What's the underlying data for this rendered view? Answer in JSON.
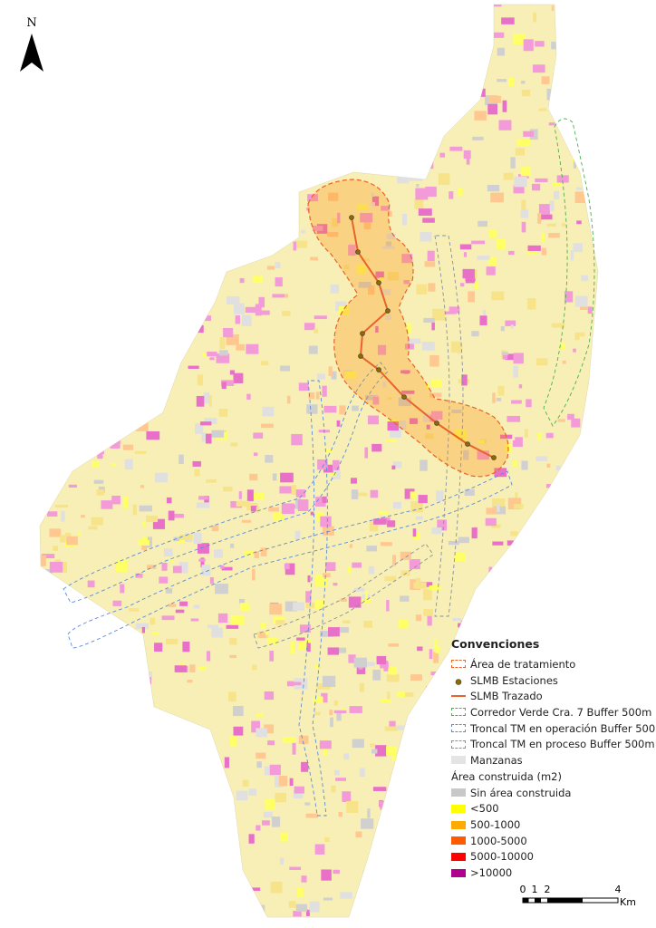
{
  "north_arrow": {
    "label": "N"
  },
  "legend": {
    "title": "Convenciones",
    "items": [
      {
        "label": "Área de tratamiento",
        "symbol": "dashed-outline",
        "color": "#e8622c"
      },
      {
        "label": "SLMB Estaciones",
        "symbol": "point",
        "color": "#8a6d00"
      },
      {
        "label": "SLMB Trazado",
        "symbol": "line",
        "color": "#e8622c"
      },
      {
        "label": "Corredor Verde Cra. 7 Buffer 500m",
        "symbol": "dashed-outline",
        "color": "#4caf50"
      },
      {
        "label": "Troncal TM en operación Buffer 500m",
        "symbol": "dashed-outline",
        "color": "#5b8bd6"
      },
      {
        "label": "Troncal TM en proceso Buffer 500m",
        "symbol": "dashed-outline",
        "color": "#8a8fa0"
      },
      {
        "label": "Manzanas",
        "symbol": "fill",
        "color": "#e4e4e4"
      }
    ],
    "subtitle": "Área construida (m2)",
    "classes": [
      {
        "label": "Sin área construida",
        "color": "#c8c8c8"
      },
      {
        "label": "<500",
        "color": "#ffff00"
      },
      {
        "label": "500-1000",
        "color": "#ffaa00"
      },
      {
        "label": "1000-5000",
        "color": "#ff5a00"
      },
      {
        "label": "5000-10000",
        "color": "#ff0000"
      },
      {
        "label": ">10000",
        "color": "#b0008f"
      }
    ]
  },
  "scale_bar": {
    "ticks": [
      "0",
      "1",
      "2",
      "4"
    ],
    "unit": "Km"
  }
}
